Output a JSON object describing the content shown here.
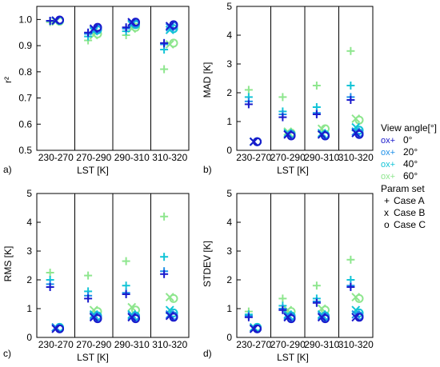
{
  "chart_data": [
    {
      "panel": "a)",
      "type": "scatter",
      "ylabel": "r²",
      "xlabel": "LST [K]",
      "ylim": [
        0.5,
        1.05
      ],
      "yticks": [
        "0.5",
        "0.6",
        "0.7",
        "0.8",
        "0.9",
        "1.0"
      ],
      "categories": [
        "230-270",
        "270-290",
        "290-310",
        "310-320"
      ],
      "series": [
        {
          "name": "0° Case A",
          "angle": "0°",
          "case": "A",
          "values": [
            0.995,
            0.95,
            0.97,
            0.91
          ]
        },
        {
          "name": "0° Case B",
          "angle": "0°",
          "case": "B",
          "values": [
            0.996,
            0.965,
            0.99,
            0.975
          ]
        },
        {
          "name": "0° Case C",
          "angle": "0°",
          "case": "C",
          "values": [
            0.998,
            0.97,
            0.99,
            0.98
          ]
        },
        {
          "name": "20° Case A",
          "angle": "20°",
          "case": "A",
          "values": [
            0.995,
            0.945,
            0.965,
            0.905
          ]
        },
        {
          "name": "20° Case B",
          "angle": "20°",
          "case": "B",
          "values": [
            0.996,
            0.96,
            0.985,
            0.97
          ]
        },
        {
          "name": "20° Case C",
          "angle": "20°",
          "case": "C",
          "values": [
            0.997,
            0.965,
            0.985,
            0.975
          ]
        },
        {
          "name": "40° Case A",
          "angle": "40°",
          "case": "A",
          "values": [
            0.994,
            0.935,
            0.955,
            0.885
          ]
        },
        {
          "name": "40° Case B",
          "angle": "40°",
          "case": "B",
          "values": [
            0.995,
            0.955,
            0.98,
            0.96
          ]
        },
        {
          "name": "40° Case C",
          "angle": "40°",
          "case": "C",
          "values": [
            0.996,
            0.96,
            0.98,
            0.965
          ]
        },
        {
          "name": "60° Case A",
          "angle": "60°",
          "case": "A",
          "values": [
            0.99,
            0.92,
            0.94,
            0.81
          ]
        },
        {
          "name": "60° Case B",
          "angle": "60°",
          "case": "B",
          "values": [
            0.992,
            0.94,
            0.965,
            0.905
          ]
        },
        {
          "name": "60° Case C",
          "angle": "60°",
          "case": "C",
          "values": [
            0.993,
            0.945,
            0.97,
            0.91
          ]
        }
      ]
    },
    {
      "panel": "b)",
      "type": "scatter",
      "ylabel": "MAD [K]",
      "xlabel": "LST [K]",
      "ylim": [
        0,
        5
      ],
      "yticks": [
        "0",
        "1",
        "2",
        "3",
        "4",
        "5"
      ],
      "categories": [
        "230-270",
        "270-290",
        "290-310",
        "310-320"
      ],
      "series": [
        {
          "name": "0° Case A",
          "angle": "0°",
          "case": "A",
          "values": [
            1.6,
            1.15,
            1.25,
            1.75
          ]
        },
        {
          "name": "0° Case B",
          "angle": "0°",
          "case": "B",
          "values": [
            0.3,
            0.55,
            0.55,
            0.6
          ]
        },
        {
          "name": "0° Case C",
          "angle": "0°",
          "case": "C",
          "values": [
            0.3,
            0.5,
            0.5,
            0.55
          ]
        },
        {
          "name": "20° Case A",
          "angle": "20°",
          "case": "A",
          "values": [
            1.7,
            1.25,
            1.3,
            1.85
          ]
        },
        {
          "name": "20° Case B",
          "angle": "20°",
          "case": "B",
          "values": [
            0.3,
            0.55,
            0.55,
            0.65
          ]
        },
        {
          "name": "20° Case C",
          "angle": "20°",
          "case": "C",
          "values": [
            0.3,
            0.55,
            0.5,
            0.6
          ]
        },
        {
          "name": "40° Case A",
          "angle": "40°",
          "case": "A",
          "values": [
            1.85,
            1.35,
            1.5,
            2.25
          ]
        },
        {
          "name": "40° Case B",
          "angle": "40°",
          "case": "B",
          "values": [
            0.3,
            0.6,
            0.6,
            0.8
          ]
        },
        {
          "name": "40° Case C",
          "angle": "40°",
          "case": "C",
          "values": [
            0.3,
            0.55,
            0.55,
            0.7
          ]
        },
        {
          "name": "60° Case A",
          "angle": "60°",
          "case": "A",
          "values": [
            2.1,
            1.85,
            2.25,
            3.45
          ]
        },
        {
          "name": "60° Case B",
          "angle": "60°",
          "case": "B",
          "values": [
            0.3,
            0.65,
            0.75,
            1.1
          ]
        },
        {
          "name": "60° Case C",
          "angle": "60°",
          "case": "C",
          "values": [
            0.3,
            0.6,
            0.75,
            1.05
          ]
        }
      ]
    },
    {
      "panel": "c)",
      "type": "scatter",
      "ylabel": "RMS [K]",
      "xlabel": "LST [K]",
      "ylim": [
        0,
        5
      ],
      "yticks": [
        "0",
        "1",
        "2",
        "3",
        "4",
        "5"
      ],
      "categories": [
        "230-270",
        "270-290",
        "290-310",
        "310-320"
      ],
      "series": [
        {
          "name": "0° Case A",
          "angle": "0°",
          "case": "A",
          "values": [
            1.75,
            1.35,
            1.5,
            2.2
          ]
        },
        {
          "name": "0° Case B",
          "angle": "0°",
          "case": "B",
          "values": [
            0.3,
            0.7,
            0.7,
            0.75
          ]
        },
        {
          "name": "0° Case C",
          "angle": "0°",
          "case": "C",
          "values": [
            0.3,
            0.65,
            0.65,
            0.7
          ]
        },
        {
          "name": "20° Case A",
          "angle": "20°",
          "case": "A",
          "values": [
            1.85,
            1.45,
            1.55,
            2.3
          ]
        },
        {
          "name": "20° Case B",
          "angle": "20°",
          "case": "B",
          "values": [
            0.35,
            0.75,
            0.75,
            0.8
          ]
        },
        {
          "name": "20° Case C",
          "angle": "20°",
          "case": "C",
          "values": [
            0.3,
            0.7,
            0.7,
            0.75
          ]
        },
        {
          "name": "40° Case A",
          "angle": "40°",
          "case": "A",
          "values": [
            2.0,
            1.6,
            1.8,
            2.8
          ]
        },
        {
          "name": "40° Case B",
          "angle": "40°",
          "case": "B",
          "values": [
            0.35,
            0.8,
            0.8,
            0.95
          ]
        },
        {
          "name": "40° Case C",
          "angle": "40°",
          "case": "C",
          "values": [
            0.35,
            0.75,
            0.75,
            0.85
          ]
        },
        {
          "name": "60° Case A",
          "angle": "60°",
          "case": "A",
          "values": [
            2.25,
            2.15,
            2.65,
            4.2
          ]
        },
        {
          "name": "60° Case B",
          "angle": "60°",
          "case": "B",
          "values": [
            0.35,
            0.95,
            1.05,
            1.4
          ]
        },
        {
          "name": "60° Case C",
          "angle": "60°",
          "case": "C",
          "values": [
            0.35,
            0.9,
            0.95,
            1.35
          ]
        }
      ]
    },
    {
      "panel": "d)",
      "type": "scatter",
      "ylabel": "STDEV [K]",
      "xlabel": "LST [K]",
      "ylim": [
        0,
        5
      ],
      "yticks": [
        "0",
        "1",
        "2",
        "3",
        "4",
        "5"
      ],
      "categories": [
        "230-270",
        "270-290",
        "290-310",
        "310-320"
      ],
      "series": [
        {
          "name": "0° Case A",
          "angle": "0°",
          "case": "A",
          "values": [
            0.7,
            0.95,
            1.2,
            1.75
          ]
        },
        {
          "name": "0° Case B",
          "angle": "0°",
          "case": "B",
          "values": [
            0.3,
            0.7,
            0.7,
            0.7
          ]
        },
        {
          "name": "0° Case C",
          "angle": "0°",
          "case": "C",
          "values": [
            0.3,
            0.65,
            0.65,
            0.7
          ]
        },
        {
          "name": "20° Case A",
          "angle": "20°",
          "case": "A",
          "values": [
            0.75,
            1.0,
            1.25,
            1.8
          ]
        },
        {
          "name": "20° Case B",
          "angle": "20°",
          "case": "B",
          "values": [
            0.3,
            0.75,
            0.75,
            0.8
          ]
        },
        {
          "name": "20° Case C",
          "angle": "20°",
          "case": "C",
          "values": [
            0.3,
            0.7,
            0.7,
            0.75
          ]
        },
        {
          "name": "40° Case A",
          "angle": "40°",
          "case": "A",
          "values": [
            0.8,
            1.1,
            1.35,
            2.0
          ]
        },
        {
          "name": "40° Case B",
          "angle": "40°",
          "case": "B",
          "values": [
            0.35,
            0.8,
            0.8,
            0.95
          ]
        },
        {
          "name": "40° Case C",
          "angle": "40°",
          "case": "C",
          "values": [
            0.35,
            0.75,
            0.75,
            0.85
          ]
        },
        {
          "name": "60° Case A",
          "angle": "60°",
          "case": "A",
          "values": [
            0.9,
            1.35,
            1.8,
            2.7
          ]
        },
        {
          "name": "60° Case B",
          "angle": "60°",
          "case": "B",
          "values": [
            0.35,
            0.95,
            1.0,
            1.4
          ]
        },
        {
          "name": "60° Case C",
          "angle": "60°",
          "case": "C",
          "values": [
            0.35,
            0.9,
            0.95,
            1.35
          ]
        }
      ]
    }
  ],
  "legend": {
    "angle_title": "View angle[°]",
    "angle_glyph": "ox+",
    "angles": [
      {
        "label": "0°",
        "color": "#1a1acc"
      },
      {
        "label": "20°",
        "color": "#1e90e8"
      },
      {
        "label": "40°",
        "color": "#12c4d6"
      },
      {
        "label": "60°",
        "color": "#8ee68e"
      }
    ],
    "param_title": "Param set",
    "params": [
      {
        "symbol": "+",
        "label": "Case A"
      },
      {
        "symbol": "x",
        "label": "Case B"
      },
      {
        "symbol": "o",
        "label": "Case C"
      }
    ]
  }
}
